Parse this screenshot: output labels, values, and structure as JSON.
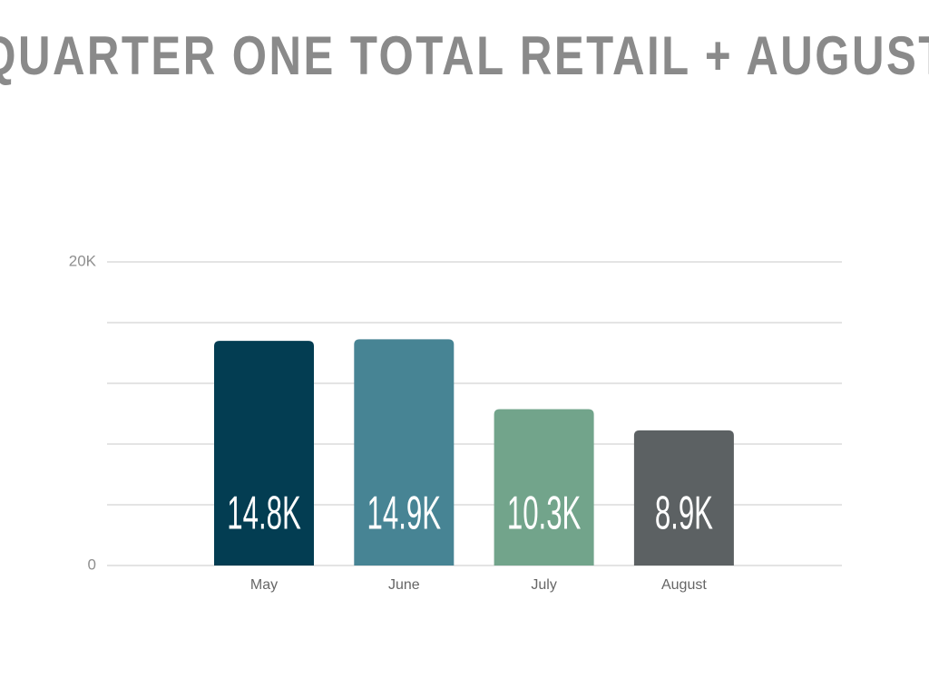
{
  "chart_data": {
    "type": "bar",
    "title": "QUARTER ONE TOTAL RETAIL + AUGUST",
    "categories": [
      "May",
      "June",
      "July",
      "August"
    ],
    "values": [
      14800,
      14900,
      10300,
      8900
    ],
    "value_labels": [
      "14.8K",
      "14.9K",
      "10.3K",
      "8.9K"
    ],
    "colors": [
      "#033d52",
      "#478494",
      "#72a48b",
      "#5c6163"
    ],
    "ylim": [
      0,
      20000
    ],
    "yticks": [
      0,
      {
        "value": 20000,
        "label": "20K"
      }
    ],
    "ygrid": [
      0,
      4000,
      8000,
      12000,
      16000,
      20000
    ],
    "grid": true
  }
}
